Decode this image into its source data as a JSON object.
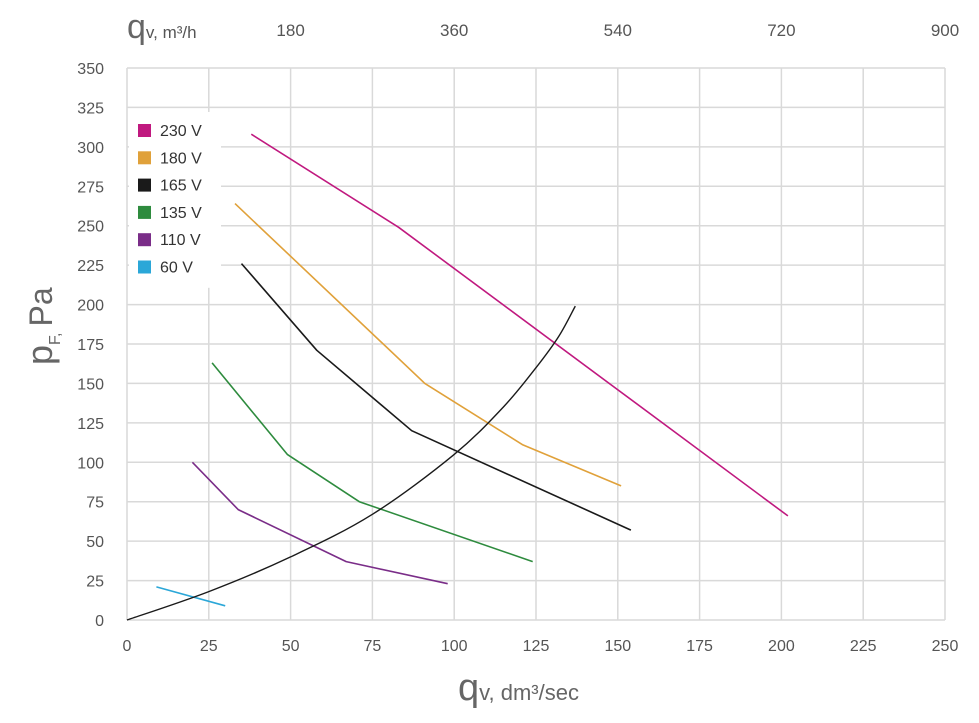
{
  "chart_data": {
    "type": "line",
    "title": "",
    "xlabel_main": "q",
    "xlabel_sub": "v, dm³/sec",
    "x2label_main": "q",
    "x2label_sub": "v, m³/h",
    "ylabel_main": "p",
    "ylabel_sub": "F,",
    "ylabel_unit": "Pa",
    "xlim": [
      0,
      250
    ],
    "ylim": [
      0,
      350
    ],
    "x_ticks": [
      0,
      25,
      50,
      75,
      100,
      125,
      150,
      175,
      200,
      225,
      250
    ],
    "y_ticks": [
      0,
      25,
      50,
      75,
      100,
      125,
      150,
      175,
      200,
      225,
      250,
      275,
      300,
      325,
      350
    ],
    "x2_ticks": [
      180,
      360,
      540,
      720,
      900
    ],
    "x2_factor": 3.6,
    "grid": true,
    "legend_position": "top-left",
    "series": [
      {
        "name": "230 V",
        "color": "#c0197f",
        "points": [
          [
            38,
            308
          ],
          [
            83,
            249
          ],
          [
            202,
            66
          ]
        ]
      },
      {
        "name": "180 V",
        "color": "#e0a13a",
        "points": [
          [
            33,
            264
          ],
          [
            91,
            150
          ],
          [
            121,
            111
          ],
          [
            151,
            85
          ]
        ]
      },
      {
        "name": "165 V",
        "color": "#1a1a1a",
        "points": [
          [
            35,
            226
          ],
          [
            58,
            171
          ],
          [
            87,
            120
          ],
          [
            154,
            57
          ]
        ]
      },
      {
        "name": "135 V",
        "color": "#2e8b3e",
        "points": [
          [
            26,
            163
          ],
          [
            49,
            105
          ],
          [
            71,
            75
          ],
          [
            124,
            37
          ]
        ]
      },
      {
        "name": "110 V",
        "color": "#7a2d88",
        "points": [
          [
            20,
            100
          ],
          [
            34,
            70
          ],
          [
            67,
            37
          ],
          [
            98,
            23
          ]
        ]
      },
      {
        "name": "60 V",
        "color": "#2ba7d8",
        "points": [
          [
            9,
            21
          ],
          [
            30,
            9
          ]
        ]
      }
    ],
    "system_curve": {
      "color": "#1a1a1a",
      "points": [
        [
          0,
          0
        ],
        [
          25,
          18
        ],
        [
          50,
          40
        ],
        [
          75,
          67
        ],
        [
          100,
          105
        ],
        [
          115,
          135
        ],
        [
          125,
          160
        ],
        [
          132,
          180
        ],
        [
          137,
          199
        ]
      ]
    }
  }
}
